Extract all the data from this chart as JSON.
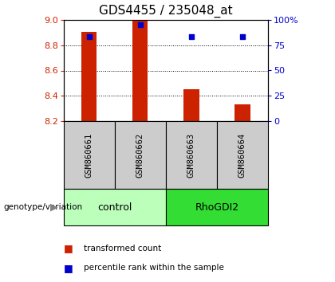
{
  "title": "GDS4455 / 235048_at",
  "samples": [
    "GSM860661",
    "GSM860662",
    "GSM860663",
    "GSM860664"
  ],
  "groups": [
    {
      "label": "control",
      "samples": [
        0,
        1
      ],
      "color": "#bbffbb"
    },
    {
      "label": "RhoGDI2",
      "samples": [
        2,
        3
      ],
      "color": "#33dd33"
    }
  ],
  "bar_bottom": 8.2,
  "bar_tops": [
    8.905,
    9.0,
    8.45,
    8.335
  ],
  "percentiles": [
    83,
    95,
    83,
    83
  ],
  "ylim_left": [
    8.2,
    9.0
  ],
  "ylim_right": [
    0,
    100
  ],
  "yticks_left": [
    8.2,
    8.4,
    8.6,
    8.8,
    9.0
  ],
  "yticks_right": [
    0,
    25,
    50,
    75,
    100
  ],
  "ytick_labels_right": [
    "0",
    "25",
    "50",
    "75",
    "100%"
  ],
  "gridlines": [
    8.4,
    8.6,
    8.8
  ],
  "bar_color": "#cc2200",
  "dot_color": "#0000cc",
  "bar_width": 0.3,
  "bg_color": "#ffffff",
  "left_label_color": "#cc2200",
  "right_label_color": "#0000cc",
  "legend_bar_label": "transformed count",
  "legend_dot_label": "percentile rank within the sample",
  "genotype_label": "genotype/variation",
  "sample_box_color": "#cccccc",
  "title_fontsize": 11,
  "tick_fontsize": 8,
  "label_fontsize": 8
}
